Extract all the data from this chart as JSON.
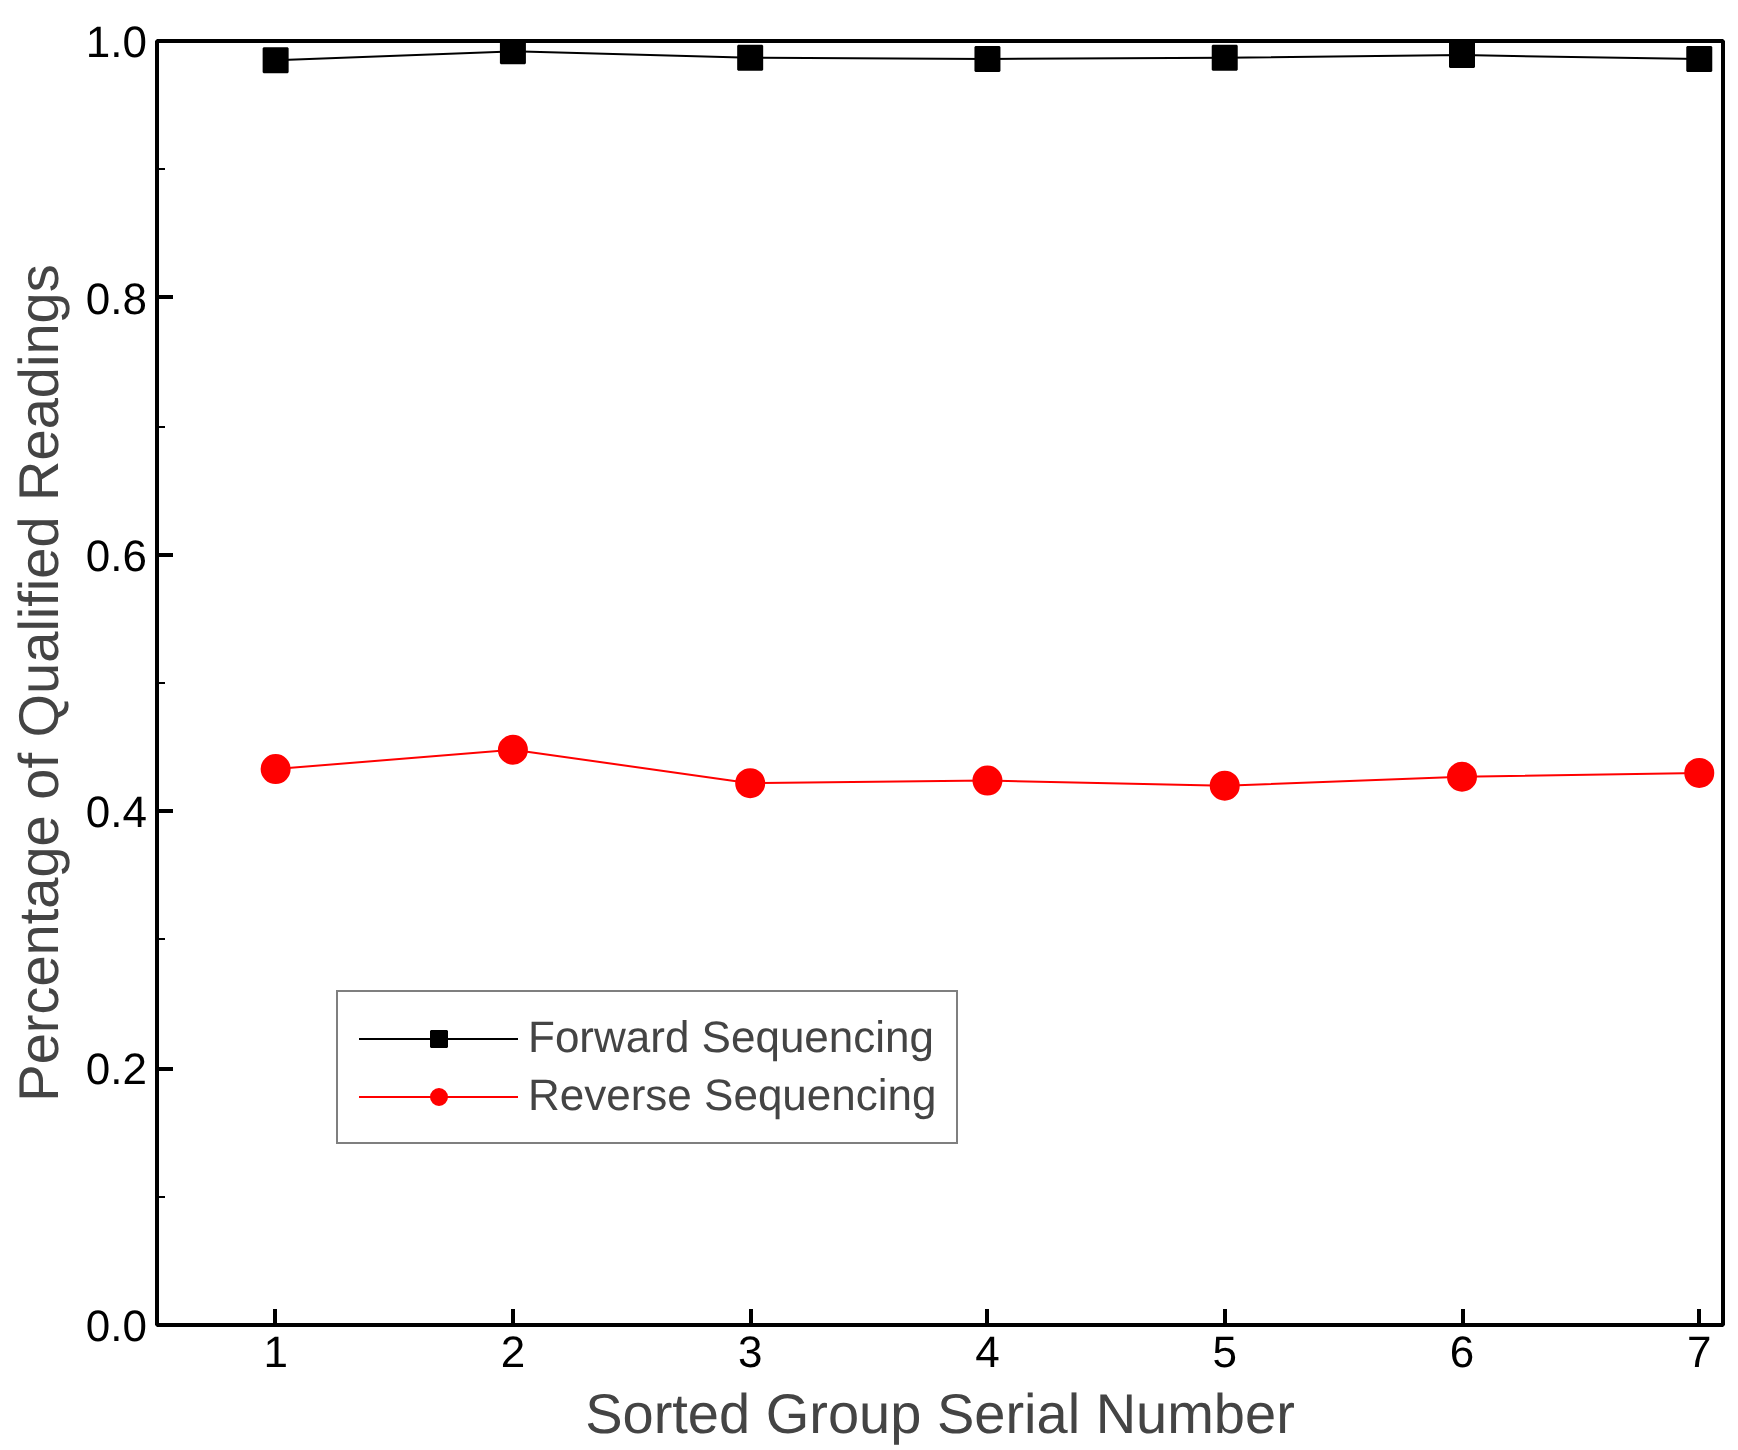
{
  "chart_data": {
    "type": "line",
    "xlabel": "Sorted Group Serial Number",
    "ylabel": "Percentage of Qualified Readings",
    "x": [
      1,
      2,
      3,
      4,
      5,
      6,
      7
    ],
    "series": [
      {
        "name": "Forward Sequencing",
        "color": "#000000",
        "marker": "square",
        "values": [
          0.985,
          0.992,
          0.987,
          0.986,
          0.987,
          0.989,
          0.986
        ]
      },
      {
        "name": "Reverse Sequencing",
        "color": "#ff0000",
        "marker": "circle",
        "values": [
          0.433,
          0.448,
          0.422,
          0.424,
          0.42,
          0.427,
          0.43
        ]
      }
    ],
    "xlim": [
      0.5,
      7.1
    ],
    "ylim": [
      0,
      1.0
    ],
    "xticks": [
      1,
      2,
      3,
      4,
      5,
      6,
      7
    ],
    "yticks": [
      {
        "value": 0,
        "label": "0.0"
      },
      0.2,
      0.4,
      0.6,
      0.8,
      {
        "value": 1,
        "label": "1.0"
      }
    ],
    "grid": false,
    "legend": "bottom left",
    "line_style": "solid"
  }
}
